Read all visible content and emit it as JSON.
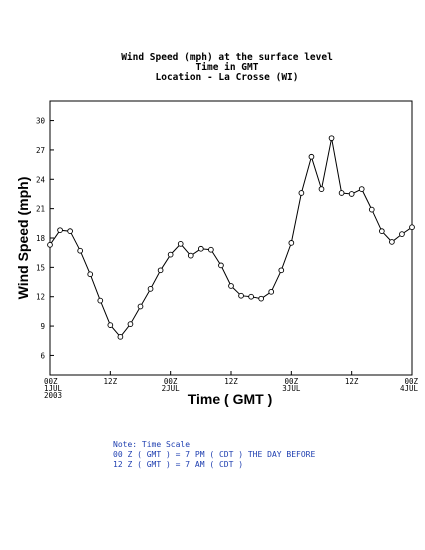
{
  "chart_data": {
    "type": "line",
    "title_lines": [
      "Wind Speed (mph) at the surface level",
      "Time in GMT",
      "Location - La Crosse (WI)"
    ],
    "xlabel": "Time ( GMT )",
    "ylabel": "Wind Speed (mph)",
    "ylim": [
      4,
      32
    ],
    "yticks": [
      6,
      9,
      12,
      15,
      18,
      21,
      24,
      27,
      30
    ],
    "xlim": [
      0,
      72
    ],
    "xticks": [
      {
        "x": 0,
        "lines": [
          "00Z",
          "1JUL",
          "2003"
        ]
      },
      {
        "x": 12,
        "lines": [
          "12Z"
        ]
      },
      {
        "x": 24,
        "lines": [
          "00Z",
          "2JUL"
        ]
      },
      {
        "x": 36,
        "lines": [
          "12Z"
        ]
      },
      {
        "x": 48,
        "lines": [
          "00Z",
          "3JUL"
        ]
      },
      {
        "x": 60,
        "lines": [
          "12Z"
        ]
      },
      {
        "x": 72,
        "lines": [
          "00Z",
          "4JUL"
        ]
      }
    ],
    "grid": false,
    "series": [
      {
        "x": [
          0,
          2,
          4,
          6,
          8,
          10,
          12,
          14,
          16,
          18,
          20,
          22,
          24,
          26,
          28,
          30,
          32,
          34,
          36,
          38,
          40,
          42,
          44,
          46,
          48,
          50,
          52,
          54,
          56,
          58,
          60,
          62,
          64,
          66,
          68,
          70,
          72
        ],
        "y": [
          17.3,
          18.8,
          18.7,
          16.7,
          14.3,
          11.6,
          9.1,
          7.9,
          9.2,
          11.0,
          12.8,
          14.7,
          16.3,
          17.4,
          16.2,
          16.9,
          16.8,
          15.2,
          13.1,
          12.1,
          12.0,
          11.8,
          12.5,
          14.7,
          17.5,
          22.6,
          26.3,
          23.0,
          28.2,
          22.6,
          22.5,
          23.0,
          20.9,
          18.7,
          17.6,
          18.4,
          19.1
        ]
      }
    ]
  },
  "note": {
    "lines": [
      "Note: Time Scale",
      "00 Z ( GMT ) = 7 PM ( CDT ) THE DAY BEFORE",
      "12 Z ( GMT ) = 7 AM ( CDT )"
    ]
  }
}
